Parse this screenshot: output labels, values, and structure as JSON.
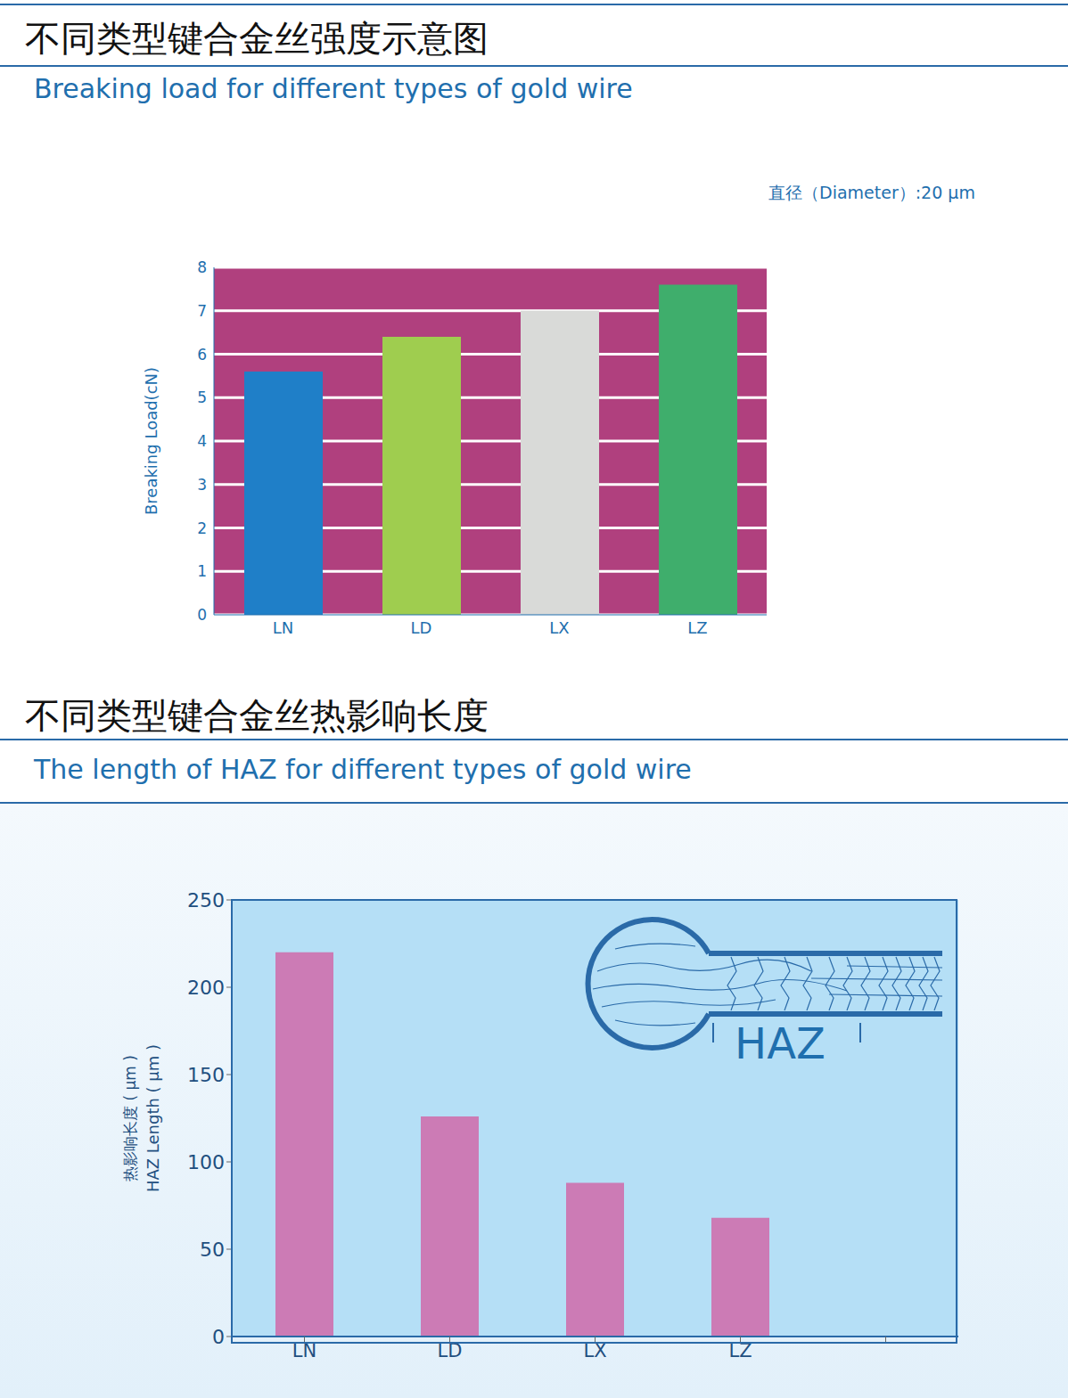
{
  "chart_data": [
    {
      "type": "bar",
      "title": "不同类型键合金丝强度示意图",
      "subtitle": "Breaking load for different types of gold wire",
      "y_label": "Breaking Load(cN)",
      "annotations": [
        "直径（Diameter）:20 μm"
      ],
      "categories": [
        "LN",
        "LD",
        "LX",
        "LZ"
      ],
      "values": [
        5.6,
        6.4,
        7.0,
        7.6
      ],
      "colors": [
        "#1f7fc8",
        "#9fcd4f",
        "#d9dad8",
        "#3fae6c"
      ],
      "ylim": [
        0,
        8
      ],
      "yticks": [
        0,
        1,
        2,
        3,
        4,
        5,
        6,
        7,
        8
      ],
      "grid": true
    },
    {
      "type": "bar",
      "title": "不同类型键合金丝热影响长度",
      "subtitle": "The length of HAZ for different types of gold wire",
      "y_label": [
        "热影响长度 ( μm )",
        "HAZ Length ( μm )"
      ],
      "annotations": [
        "HAZ"
      ],
      "categories": [
        "LN",
        "LD",
        "LX",
        "LZ",
        null
      ],
      "values": [
        220,
        126,
        88,
        68,
        null
      ],
      "color": "#cc7bb5",
      "ylim": [
        0,
        250
      ],
      "yticks": [
        0,
        50,
        100,
        150,
        200,
        250
      ],
      "grid": false
    }
  ]
}
